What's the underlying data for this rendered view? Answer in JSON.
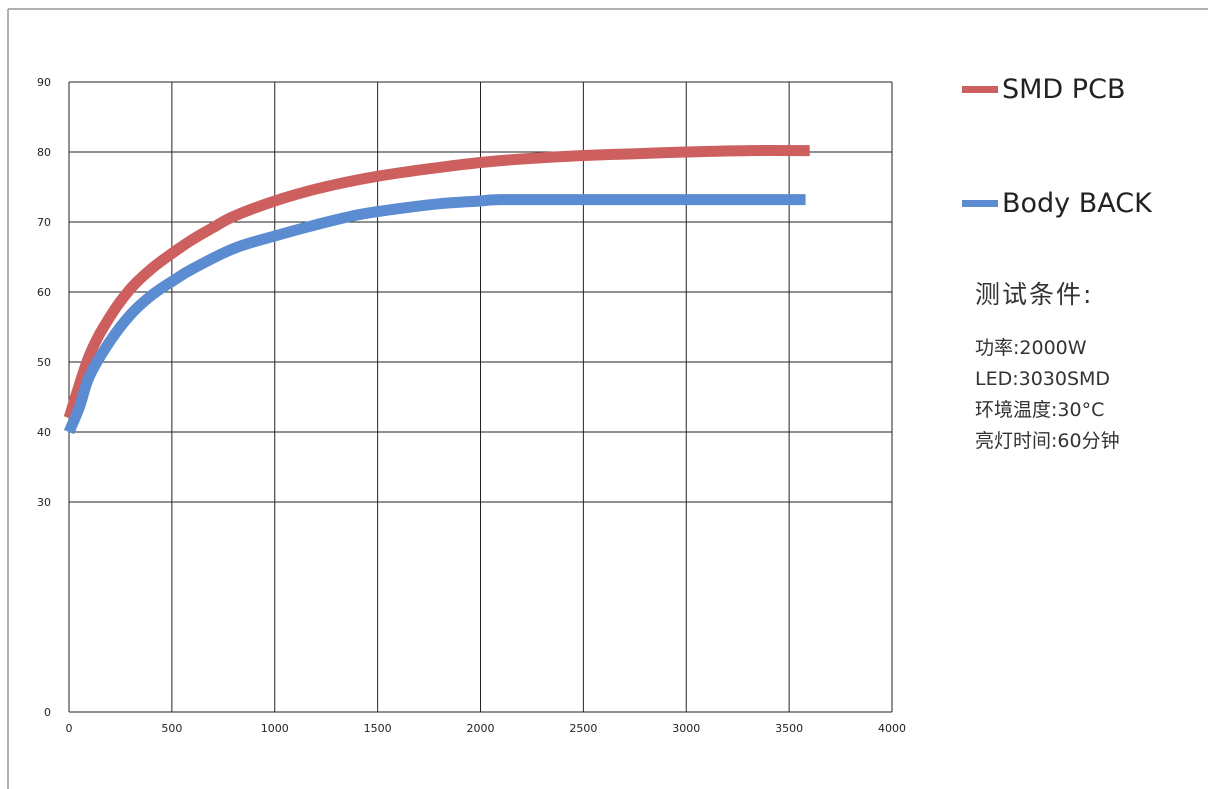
{
  "chart_data": {
    "type": "line",
    "title": "",
    "xlabel": "",
    "ylabel": "",
    "xlim": [
      0,
      4000
    ],
    "ylim": [
      0,
      90
    ],
    "x_ticks": [
      0,
      500,
      1000,
      1500,
      2000,
      2500,
      3000,
      3500,
      4000
    ],
    "y_ticks": [
      0,
      30,
      40,
      50,
      60,
      70,
      80,
      90
    ],
    "grid": true,
    "legend_position": "right",
    "series": [
      {
        "name": "SMD PCB",
        "color": "#cd5f5f",
        "points": [
          [
            0,
            42
          ],
          [
            100,
            51
          ],
          [
            200,
            56.5
          ],
          [
            300,
            60.5
          ],
          [
            400,
            63.3
          ],
          [
            500,
            65.5
          ],
          [
            600,
            67.5
          ],
          [
            700,
            69.2
          ],
          [
            800,
            70.8
          ],
          [
            1000,
            73
          ],
          [
            1200,
            74.7
          ],
          [
            1400,
            76
          ],
          [
            1600,
            77
          ],
          [
            1800,
            77.8
          ],
          [
            2000,
            78.5
          ],
          [
            2200,
            79
          ],
          [
            2500,
            79.5
          ],
          [
            2800,
            79.8
          ],
          [
            3000,
            80
          ],
          [
            3300,
            80.2
          ],
          [
            3600,
            80.2
          ]
        ]
      },
      {
        "name": "Body BACK",
        "color": "#5b8bd0",
        "points": [
          [
            0,
            40
          ],
          [
            50,
            43.5
          ],
          [
            100,
            48
          ],
          [
            200,
            53
          ],
          [
            300,
            56.8
          ],
          [
            400,
            59.5
          ],
          [
            500,
            61.5
          ],
          [
            600,
            63.3
          ],
          [
            800,
            66.2
          ],
          [
            1000,
            68
          ],
          [
            1200,
            69.6
          ],
          [
            1400,
            71
          ],
          [
            1600,
            71.9
          ],
          [
            1800,
            72.6
          ],
          [
            2000,
            73
          ],
          [
            2100,
            73.2
          ],
          [
            2500,
            73.2
          ],
          [
            3000,
            73.2
          ],
          [
            3500,
            73.2
          ],
          [
            3580,
            73.2
          ]
        ]
      }
    ]
  },
  "legend": {
    "items": [
      {
        "label": "SMD PCB",
        "color": "#cd5f5f"
      },
      {
        "label": "Body BACK",
        "color": "#5b8bd0"
      }
    ]
  },
  "conditions": {
    "title": "测试条件:",
    "lines": [
      "功率:2000W",
      "LED:3030SMD",
      "环境温度:30°C",
      "亮灯时间:60分钟"
    ]
  }
}
